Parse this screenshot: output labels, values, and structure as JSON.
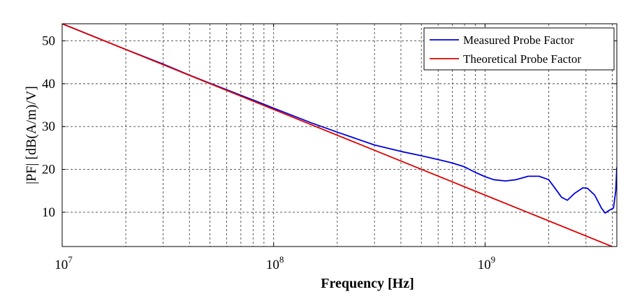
{
  "chart_data": {
    "type": "line",
    "xscale": "log",
    "xlabel": "Frequency [Hz]",
    "ylabel": "|PF| [dB(A/m)/V]",
    "xlim": [
      10000000,
      4200000000
    ],
    "ylim": [
      2,
      54
    ],
    "grid": true,
    "legend_position": "top-right",
    "x_ticks": [
      {
        "value": 10000000,
        "base": "10",
        "exp": "7"
      },
      {
        "value": 100000000,
        "base": "10",
        "exp": "8"
      },
      {
        "value": 1000000000,
        "base": "10",
        "exp": "9"
      }
    ],
    "y_ticks": [
      10,
      20,
      30,
      40,
      50
    ],
    "series": [
      {
        "name": "Measured Probe Factor",
        "color": "#0000dd",
        "points": [
          [
            10000000,
            54.0
          ],
          [
            20000000,
            48.0
          ],
          [
            30000000,
            44.6
          ],
          [
            40000000,
            42.0
          ],
          [
            50000000,
            40.1
          ],
          [
            60000000,
            38.6
          ],
          [
            70000000,
            37.3
          ],
          [
            80000000,
            36.2
          ],
          [
            100000000,
            34.3
          ],
          [
            150000000,
            30.9
          ],
          [
            200000000,
            28.7
          ],
          [
            300000000,
            25.7
          ],
          [
            400000000,
            24.2
          ],
          [
            500000000,
            23.2
          ],
          [
            600000000,
            22.3
          ],
          [
            700000000,
            21.5
          ],
          [
            800000000,
            20.6
          ],
          [
            900000000,
            19.3
          ],
          [
            1000000000,
            18.3
          ],
          [
            1100000000,
            17.6
          ],
          [
            1250000000,
            17.3
          ],
          [
            1400000000,
            17.6
          ],
          [
            1600000000,
            18.4
          ],
          [
            1800000000,
            18.4
          ],
          [
            2000000000,
            17.6
          ],
          [
            2150000000,
            15.5
          ],
          [
            2300000000,
            13.5
          ],
          [
            2450000000,
            12.8
          ],
          [
            2650000000,
            14.4
          ],
          [
            2900000000,
            15.7
          ],
          [
            3050000000,
            15.6
          ],
          [
            3300000000,
            14.0
          ],
          [
            3550000000,
            11.0
          ],
          [
            3700000000,
            9.8
          ],
          [
            3850000000,
            10.4
          ],
          [
            4050000000,
            11.0
          ],
          [
            4150000000,
            15.0
          ],
          [
            4200000000,
            20.5
          ]
        ]
      },
      {
        "name": "Theoretical Probe Factor",
        "color": "#dd0000",
        "points": [
          [
            10000000,
            54.0
          ],
          [
            100000000,
            34.0
          ],
          [
            1000000000,
            14.0
          ],
          [
            4200000000,
            1.55
          ]
        ]
      }
    ]
  }
}
